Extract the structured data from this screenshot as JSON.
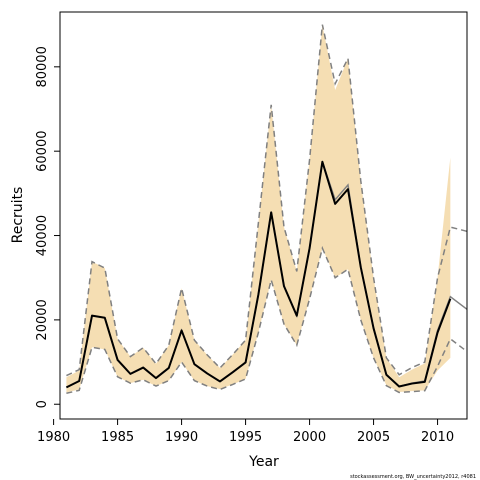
{
  "chart_data": {
    "type": "line",
    "xlabel": "Year",
    "ylabel": "Recruits",
    "xlim": [
      1980.5,
      2012.3
    ],
    "ylim": [
      -3500,
      93000
    ],
    "x_ticks": [
      1980,
      1985,
      1990,
      1995,
      2000,
      2005,
      2010
    ],
    "x_tick_labels": [
      "1980",
      "1985",
      "1990",
      "1995",
      "2000",
      "2005",
      "2010"
    ],
    "y_ticks": [
      0,
      20000,
      40000,
      60000,
      80000
    ],
    "y_tick_labels": [
      "0",
      "20000",
      "40000",
      "60000",
      "80000"
    ],
    "grid": false,
    "series": [
      {
        "role": "band",
        "color": "#f5deb3",
        "x": [
          1981,
          1982,
          1983,
          1984,
          1985,
          1986,
          1987,
          1988,
          1989,
          1990,
          1991,
          1992,
          1993,
          1994,
          1995,
          1996,
          1997,
          1998,
          1999,
          2000,
          2001,
          2002,
          2003,
          2004,
          2005,
          2006,
          2007,
          2008,
          2009,
          2010,
          2011
        ],
        "lower": [
          2800,
          3500,
          13500,
          13000,
          6500,
          5000,
          5800,
          4300,
          5600,
          10000,
          5600,
          4300,
          3600,
          4700,
          6000,
          17000,
          29500,
          19000,
          14000,
          25000,
          37000,
          30000,
          32000,
          20000,
          11000,
          4500,
          2900,
          3100,
          3300,
          8000,
          11000
        ],
        "upper": [
          6400,
          8000,
          33800,
          32300,
          15500,
          11300,
          13400,
          9600,
          14000,
          27500,
          15200,
          11700,
          8600,
          11800,
          15200,
          43000,
          71000,
          42000,
          31500,
          58000,
          90000,
          74500,
          82000,
          53000,
          30000,
          11000,
          6400,
          8200,
          9700,
          30000,
          58500
        ]
      },
      {
        "role": "interval",
        "color": "#808080",
        "dashed": true,
        "x": [
          1981,
          1982,
          1983,
          1984,
          1985,
          1986,
          1987,
          1988,
          1989,
          1990,
          1991,
          1992,
          1993,
          1994,
          1995,
          1996,
          1997,
          1998,
          1999,
          2000,
          2001,
          2002,
          2003,
          2004,
          2005,
          2006,
          2007,
          2008,
          2009,
          2010,
          2011,
          2012.3
        ],
        "lower": [
          2600,
          3300,
          13500,
          13000,
          6500,
          5000,
          5800,
          4300,
          5600,
          10000,
          5600,
          4300,
          3500,
          4700,
          6000,
          17000,
          29500,
          19000,
          14000,
          25000,
          37000,
          30000,
          32000,
          20000,
          11000,
          4400,
          2800,
          3000,
          3200,
          9000,
          15500,
          12500
        ],
        "upper": [
          6800,
          8200,
          33800,
          32300,
          15500,
          11300,
          13400,
          9600,
          14000,
          27500,
          15200,
          11700,
          8600,
          11800,
          15200,
          43000,
          71000,
          42000,
          31500,
          58000,
          90000,
          76000,
          82000,
          53000,
          30000,
          11000,
          7000,
          8700,
          10000,
          30000,
          42000,
          41000
        ]
      },
      {
        "role": "estimate",
        "color": "#000000",
        "x": [
          1981,
          1982,
          1983,
          1984,
          1985,
          1986,
          1987,
          1988,
          1989,
          1990,
          1991,
          1992,
          1993,
          1994,
          1995,
          1996,
          1997,
          1998,
          1999,
          2000,
          2001,
          2002,
          2003,
          2004,
          2005,
          2006,
          2007,
          2008,
          2009,
          2010,
          2011
        ],
        "y": [
          4000,
          5500,
          21000,
          20500,
          10500,
          7200,
          8700,
          6200,
          8600,
          17500,
          9500,
          7300,
          5400,
          7600,
          9900,
          26000,
          45500,
          28000,
          21000,
          37000,
          57500,
          47500,
          51000,
          32500,
          18000,
          7000,
          4200,
          4900,
          5300,
          17000,
          25000
        ]
      },
      {
        "role": "estimate-outline",
        "color": "#808080",
        "x": [
          1981,
          1982,
          1983,
          1984,
          1985,
          1986,
          1987,
          1988,
          1989,
          1990,
          1991,
          1992,
          1993,
          1994,
          1995,
          1996,
          1997,
          1998,
          1999,
          2000,
          2001,
          2002,
          2003,
          2004,
          2005,
          2006,
          2007,
          2008,
          2009,
          2010,
          2011,
          2012.3
        ],
        "y": [
          4000,
          5500,
          21000,
          20500,
          10500,
          7200,
          8700,
          6200,
          8600,
          17500,
          9500,
          7300,
          5400,
          7600,
          9900,
          26000,
          45500,
          28000,
          21000,
          37000,
          57500,
          48500,
          52000,
          32500,
          18000,
          7000,
          4200,
          5000,
          5500,
          17500,
          25500,
          22500
        ]
      }
    ]
  },
  "footer_note": "stockassessment.org, BW_uncertainty2012, r4081"
}
